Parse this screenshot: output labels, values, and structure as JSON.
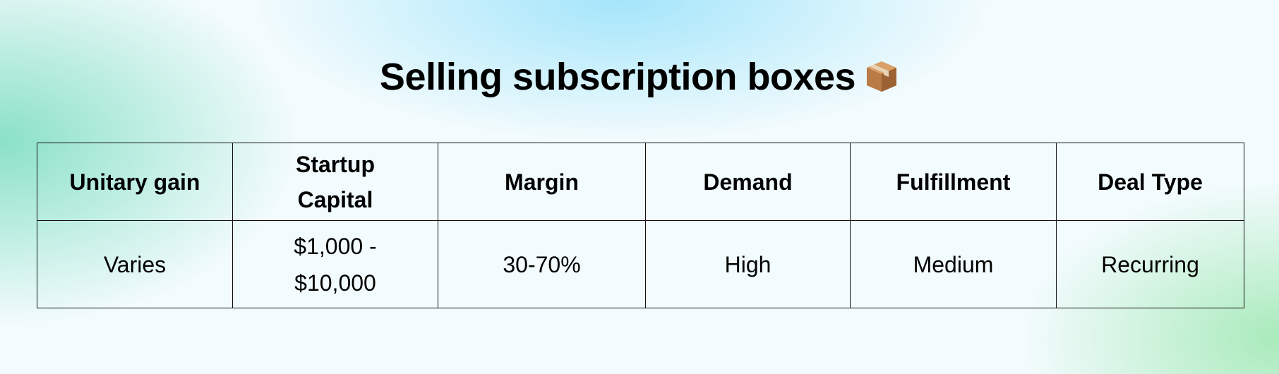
{
  "title": "Selling subscription boxes",
  "title_icon": "package-icon",
  "table": {
    "headers": [
      "Unitary gain",
      "Startup Capital",
      "Margin",
      "Demand",
      "Fulfillment",
      "Deal Type"
    ],
    "row": [
      "Varies",
      "$1,000 - $10,000",
      "30-70%",
      "High",
      "Medium",
      "Recurring"
    ]
  }
}
